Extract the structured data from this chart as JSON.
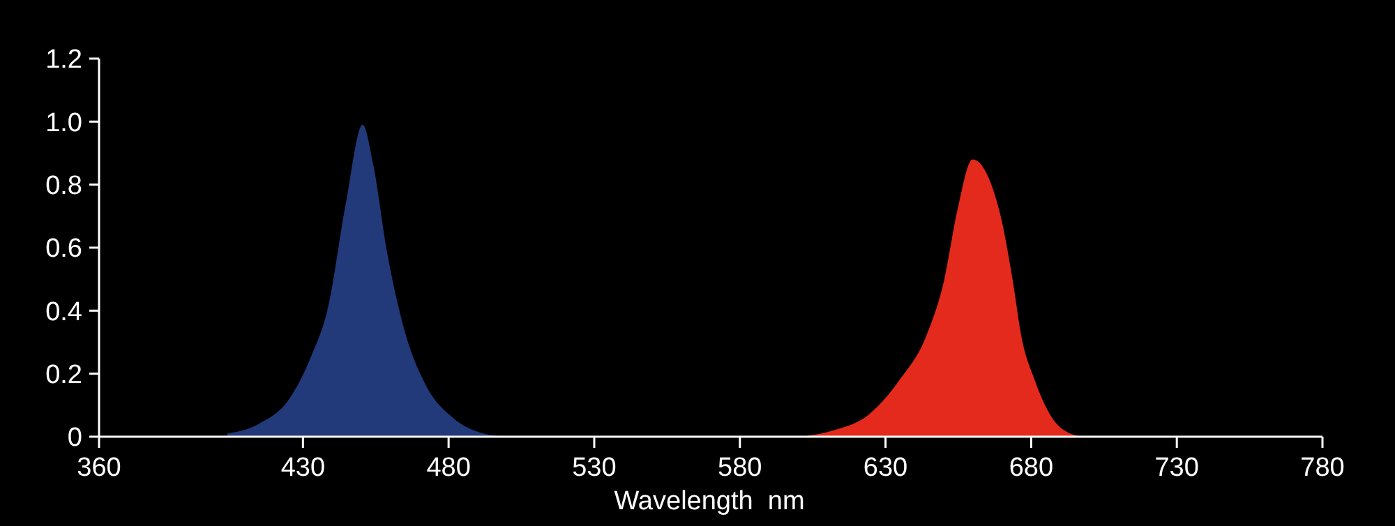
{
  "chart_data": {
    "type": "area",
    "xlabel": "Wavelength  nm",
    "xlim": [
      360,
      780
    ],
    "xticks": [
      360,
      430,
      480,
      530,
      580,
      630,
      680,
      730,
      780
    ],
    "ylim": [
      0,
      1.2
    ],
    "yticks": [
      0,
      {
        "value": 0.2,
        "label": "0.2"
      },
      {
        "value": 0.4,
        "label": "0.4"
      },
      {
        "value": 0.6,
        "label": "0.6"
      },
      {
        "value": 0.8,
        "label": "0.8"
      },
      {
        "value": 1,
        "label": "1.0"
      },
      1.2
    ],
    "grid": false,
    "series": [
      {
        "color": "#22397a",
        "x": [
          404,
          414.7,
          425.3,
          432.6,
          438.6,
          444.7,
          450.5,
          454.2,
          458.8,
          464.8,
          472.4,
          481.5,
          492.1,
          499.5
        ],
        "values": [
          0.01,
          0.04,
          0.12,
          0.25,
          0.41,
          0.74,
          0.99,
          0.86,
          0.59,
          0.34,
          0.16,
          0.06,
          0.01,
          0
        ]
      },
      {
        "color": "#e42a1c",
        "x": [
          601,
          612,
          624.2,
          634.8,
          644,
          650.2,
          654.7,
          659.9,
          669,
          673.6,
          676.6,
          681.2,
          686.5,
          693.4,
          698
        ],
        "values": [
          0,
          0.02,
          0.07,
          0.18,
          0.32,
          0.5,
          0.72,
          0.88,
          0.72,
          0.5,
          0.32,
          0.18,
          0.07,
          0.01,
          0
        ]
      }
    ]
  }
}
